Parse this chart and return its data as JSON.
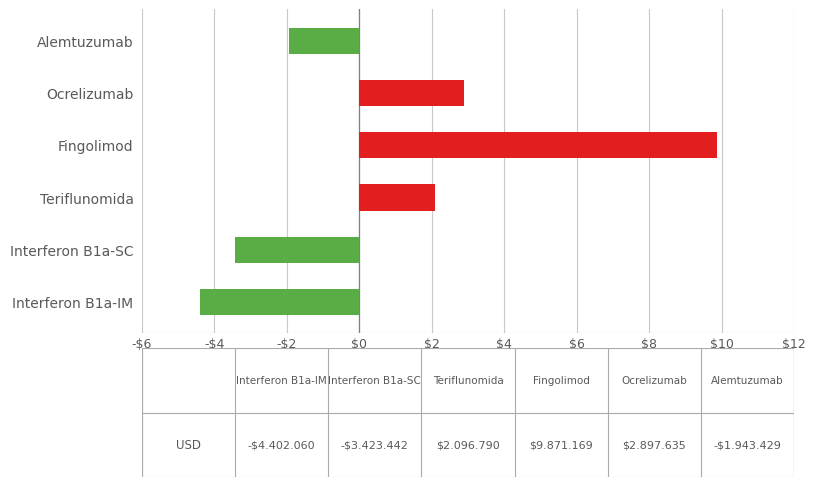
{
  "categories": [
    "Alemtuzumab",
    "Ocrelizumab",
    "Fingolimod",
    "Teriflunomida",
    "Interferon B1a-SC",
    "Interferon B1a-IM"
  ],
  "values": [
    -1.943429,
    2.897635,
    9.871169,
    2.09679,
    -3.423442,
    -4.40206
  ],
  "colors": [
    "#5aad45",
    "#e31e1e",
    "#e31e1e",
    "#e31e1e",
    "#5aad45",
    "#5aad45"
  ],
  "xlim": [
    -6,
    12
  ],
  "xticks": [
    -6,
    -4,
    -2,
    0,
    2,
    4,
    6,
    8,
    10,
    12
  ],
  "xtick_labels": [
    "-$6",
    "-$4",
    "-$2",
    "$0",
    "$2",
    "$4",
    "$6",
    "$8",
    "$10",
    "$12"
  ],
  "table_headers": [
    "",
    "Interferon B1a-IM",
    "Interferon B1a-SC",
    "Teriflunomida",
    "Fingolimod",
    "Ocrelizumab",
    "Alemtuzumab"
  ],
  "table_row_label": "USD",
  "table_values": [
    "-$4.402.060",
    "-$3.423.442",
    "$2.096.790",
    "$9.871.169",
    "$2.897.635",
    "-$1.943.429"
  ],
  "bg_color": "#ffffff",
  "bar_height": 0.5,
  "grid_color": "#c8c8c8",
  "text_color": "#595959",
  "zero_line_color": "#808080"
}
